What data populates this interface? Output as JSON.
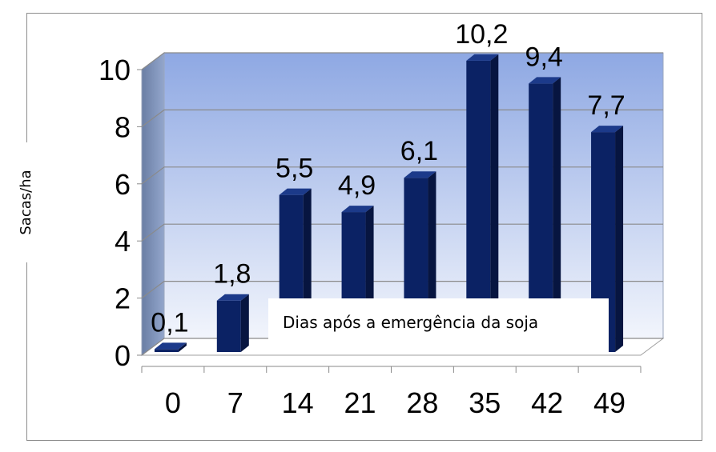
{
  "chart_data": {
    "type": "bar",
    "categories": [
      "0",
      "7",
      "14",
      "21",
      "28",
      "35",
      "42",
      "49"
    ],
    "values": [
      0.1,
      1.8,
      5.5,
      4.9,
      6.1,
      10.2,
      9.4,
      7.7
    ],
    "data_labels": [
      "0,1",
      "1,8",
      "5,5",
      "4,9",
      "6,1",
      "10,2",
      "9,4",
      "7,7"
    ],
    "ylabel": "Sacas/ha",
    "xlabel": "Dias após a emergência da soja",
    "ylim": [
      0,
      10
    ],
    "yticks": [
      "0",
      "2",
      "4",
      "6",
      "8",
      "10"
    ],
    "grid": true,
    "bar_color": "#0b2264",
    "bar_side_color": "#071540",
    "bar_top_color": "#1c3a8a",
    "wall_gradient_top": "#8ea8e3",
    "wall_gradient_bottom": "#f2f5fc",
    "side_wall_color": "#7a8fb3",
    "floor_color": "#ffffff"
  }
}
